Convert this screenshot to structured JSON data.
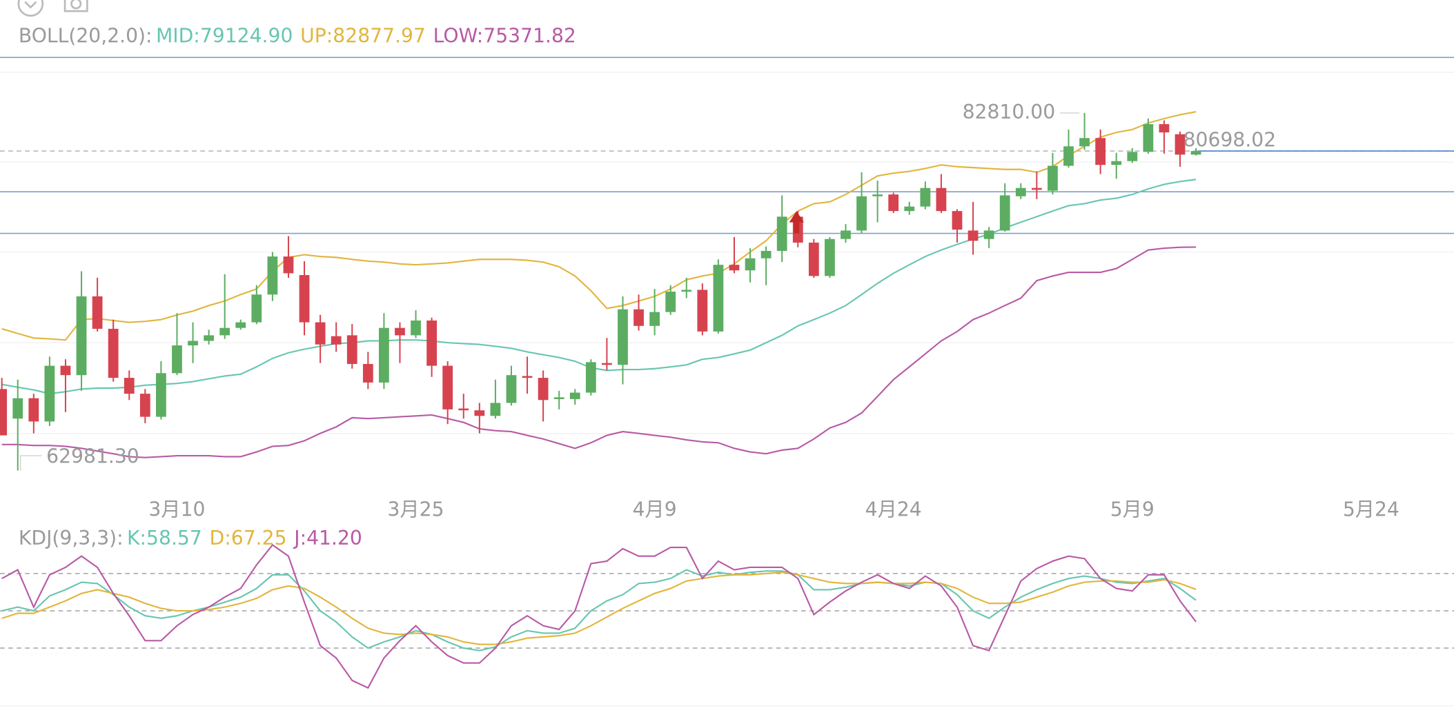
{
  "chart_data": [
    {
      "type": "candlestick",
      "title": "BOLL(20,2.0):",
      "categories": [
        null,
        null,
        null,
        null,
        null,
        null,
        null,
        null,
        null,
        null,
        null,
        "3月10",
        null,
        null,
        null,
        null,
        null,
        null,
        null,
        null,
        null,
        null,
        null,
        null,
        null,
        null,
        "3月25",
        null,
        null,
        null,
        null,
        null,
        null,
        null,
        null,
        null,
        null,
        null,
        null,
        null,
        null,
        "4月9",
        null,
        null,
        null,
        null,
        null,
        null,
        null,
        null,
        null,
        null,
        null,
        null,
        null,
        null,
        "4月24",
        null,
        null,
        null,
        null,
        null,
        null,
        null,
        null,
        null,
        null,
        null,
        null,
        null,
        null,
        "5月9",
        null,
        null,
        null,
        null,
        null,
        null,
        null,
        null,
        null,
        null,
        null,
        null,
        null,
        null,
        "5月24",
        null,
        null,
        null,
        null,
        null
      ],
      "open": [
        67500,
        65860,
        66990,
        65700,
        68790,
        68270,
        72640,
        70840,
        68120,
        67240,
        65960,
        68380,
        69920,
        70170,
        70480,
        70890,
        71200,
        72740,
        74850,
        73820,
        71200,
        70430,
        70480,
        68890,
        67860,
        70890,
        70480,
        71300,
        68790,
        66420,
        66320,
        66010,
        66730,
        68220,
        68120,
        66940,
        66940,
        67300,
        68940,
        68840,
        71920,
        71000,
        71770,
        72900,
        73000,
        70690,
        74390,
        74080,
        74750,
        75160,
        77060,
        75620,
        73770,
        75820,
        76290,
        78190,
        78290,
        77370,
        77620,
        78650,
        77370,
        76290,
        75820,
        76290,
        78190,
        78650,
        78500,
        79880,
        80960,
        81420,
        79930,
        80140,
        80650,
        82190,
        81630,
        80500,
        null,
        null,
        null,
        null,
        null,
        null,
        null,
        null,
        null,
        null,
        null,
        null,
        null,
        null,
        null,
        null
      ],
      "high": [
        68120,
        68020,
        67240,
        69300,
        69150,
        74030,
        73670,
        71350,
        68530,
        67500,
        69040,
        71710,
        71200,
        70790,
        73870,
        71350,
        73260,
        75100,
        75980,
        74590,
        71610,
        71200,
        71100,
        69560,
        71710,
        71200,
        71870,
        71460,
        69040,
        67240,
        66730,
        68020,
        68790,
        69300,
        68530,
        67400,
        67500,
        69150,
        70330,
        72640,
        72740,
        73050,
        73260,
        73670,
        73360,
        74690,
        75930,
        75310,
        75410,
        78240,
        77370,
        75820,
        75930,
        76650,
        79520,
        79060,
        78390,
        77880,
        79010,
        79420,
        77470,
        77880,
        76490,
        78910,
        78910,
        79570,
        80600,
        81890,
        82810,
        81890,
        80600,
        80860,
        82500,
        82400,
        81780,
        80860,
        null,
        null,
        null,
        null,
        null,
        null,
        null,
        null,
        null,
        null,
        null,
        null,
        null,
        null,
        null,
        null
      ],
      "low": [
        64930,
        62981.3,
        65040,
        65450,
        66220,
        67400,
        70690,
        67910,
        66890,
        65600,
        65810,
        68270,
        68940,
        69970,
        70280,
        70790,
        71100,
        72380,
        73670,
        70480,
        68940,
        69560,
        68630,
        67500,
        67500,
        68940,
        70330,
        68170,
        65550,
        65860,
        65040,
        65860,
        66580,
        67240,
        65700,
        66370,
        66630,
        67140,
        68530,
        67760,
        70740,
        70480,
        71610,
        72540,
        70480,
        70580,
        73920,
        73410,
        73260,
        74540,
        75360,
        73670,
        73670,
        75620,
        76130,
        76750,
        77260,
        77160,
        77470,
        77260,
        75620,
        74950,
        75310,
        76230,
        78030,
        78030,
        78290,
        79780,
        80760,
        79420,
        79160,
        80040,
        80550,
        80550,
        79830,
        80450,
        null,
        null,
        null,
        null,
        null,
        null,
        null,
        null,
        null,
        null,
        null,
        null,
        null,
        null,
        null,
        null
      ],
      "close": [
        64930,
        66990,
        65700,
        68790,
        68270,
        72640,
        70840,
        68120,
        67240,
        65960,
        68380,
        69920,
        70170,
        70480,
        70890,
        71200,
        72740,
        74850,
        73920,
        71200,
        69970,
        69970,
        68890,
        67860,
        70890,
        70480,
        71300,
        68790,
        66370,
        66320,
        66010,
        66730,
        68270,
        68120,
        66890,
        67040,
        67300,
        68990,
        68840,
        71920,
        71000,
        71770,
        72900,
        73000,
        70690,
        74390,
        74080,
        74750,
        75160,
        77060,
        75620,
        73770,
        75820,
        76290,
        78190,
        78290,
        77370,
        77620,
        78650,
        77370,
        76340,
        75720,
        76290,
        78240,
        78650,
        78550,
        79880,
        80960,
        81420,
        79930,
        80140,
        80650,
        82190,
        81730,
        80500,
        80698.02,
        null,
        null,
        null,
        null,
        null,
        null,
        null,
        null,
        null,
        null,
        null,
        null,
        null,
        null,
        null,
        null
      ],
      "up_color": "#5cad62",
      "down_color": "#d6434f",
      "series": [
        {
          "name": "MID:",
          "legend_value": "79124.90",
          "color": "#67c6b1",
          "values": [
            67760,
            67600,
            67450,
            67240,
            67350,
            67500,
            67550,
            67550,
            67600,
            67710,
            67760,
            67810,
            67910,
            68070,
            68220,
            68320,
            68730,
            69200,
            69510,
            69710,
            69870,
            70020,
            70070,
            70170,
            70170,
            70220,
            70220,
            70170,
            70070,
            70020,
            69970,
            69870,
            69760,
            69560,
            69400,
            69250,
            69040,
            68680,
            68530,
            68580,
            68580,
            68630,
            68730,
            68840,
            69150,
            69250,
            69450,
            69660,
            70070,
            70480,
            71000,
            71350,
            71710,
            72130,
            72740,
            73360,
            73920,
            74390,
            74850,
            75210,
            75520,
            75820,
            76080,
            76440,
            76750,
            77060,
            77370,
            77670,
            77780,
            77980,
            78080,
            78290,
            78600,
            78850,
            79010,
            79124.9,
            null,
            null,
            null,
            null,
            null,
            null,
            null,
            null,
            null,
            null,
            null,
            null,
            null,
            null,
            null,
            null
          ]
        },
        {
          "name": "UP:",
          "legend_value": "82877.97",
          "color": "#e2b53c",
          "values": [
            70840,
            70580,
            70330,
            70280,
            70220,
            71350,
            71410,
            71300,
            71200,
            71250,
            71350,
            71610,
            71820,
            72130,
            72380,
            72740,
            73050,
            74030,
            74800,
            74950,
            74850,
            74800,
            74690,
            74590,
            74540,
            74440,
            74390,
            74440,
            74490,
            74590,
            74690,
            74690,
            74690,
            74640,
            74540,
            74280,
            73770,
            72950,
            71970,
            72130,
            72380,
            72640,
            73050,
            73560,
            73770,
            73920,
            74440,
            75100,
            75720,
            76650,
            77370,
            77780,
            77880,
            78290,
            78800,
            79320,
            79470,
            79570,
            79730,
            79930,
            79830,
            79780,
            79730,
            79680,
            79680,
            79520,
            79830,
            80450,
            80960,
            81470,
            81730,
            81890,
            82250,
            82500,
            82710,
            82877.97,
            null,
            null,
            null,
            null,
            null,
            null,
            null,
            null,
            null,
            null,
            null,
            null,
            null,
            null,
            null,
            null
          ]
        },
        {
          "name": "LOW:",
          "legend_value": "75371.82",
          "color": "#b85aa6",
          "values": [
            64420,
            64420,
            64370,
            64370,
            64320,
            64210,
            64060,
            63910,
            63750,
            63700,
            63750,
            63800,
            63800,
            63800,
            63750,
            63750,
            64010,
            64320,
            64370,
            64630,
            65040,
            65400,
            65910,
            65860,
            65910,
            65960,
            66010,
            66060,
            65860,
            65650,
            65290,
            65190,
            65140,
            64930,
            64730,
            64470,
            64210,
            64520,
            64930,
            65140,
            65040,
            64930,
            64830,
            64680,
            64570,
            64520,
            64210,
            64010,
            63910,
            64110,
            64210,
            64730,
            65340,
            65650,
            66170,
            67090,
            68020,
            68730,
            69450,
            70170,
            70690,
            71350,
            71710,
            72130,
            72540,
            73510,
            73770,
            73970,
            73970,
            73970,
            74180,
            74690,
            75210,
            75310,
            75360,
            75371.82,
            null,
            null,
            null,
            null,
            null,
            null,
            null,
            null,
            null,
            null,
            null,
            null,
            null,
            null,
            null,
            null
          ]
        }
      ],
      "annotations": [
        {
          "label": "82810.00",
          "value": 82810
        },
        {
          "label": "62981.30",
          "value": 62981.3
        },
        {
          "label": "80698.02",
          "value": 80698.02,
          "color": "#4a7fc9"
        }
      ],
      "ylim": [
        61590,
        85890
      ]
    },
    {
      "type": "line",
      "title": "KDJ(9,3,3):",
      "hlines": [
        20,
        50,
        80
      ],
      "ylim": [
        -25,
        98
      ],
      "series": [
        {
          "name": "K:",
          "legend_value": "58.57",
          "color": "#67c6b1",
          "values": [
            50,
            53,
            50,
            62,
            67,
            73,
            72,
            63,
            53,
            46,
            44,
            46,
            50,
            53,
            57,
            61,
            68,
            79,
            79,
            66,
            50,
            41,
            29,
            20,
            25,
            29,
            34,
            31,
            25,
            20,
            18,
            21,
            29,
            34,
            32,
            32,
            36,
            50,
            58,
            63,
            72,
            73,
            76,
            83,
            78,
            81,
            79,
            81,
            82,
            82,
            79,
            67,
            67,
            69,
            72,
            73,
            72,
            70,
            73,
            72,
            63,
            50,
            44,
            53,
            61,
            67,
            72,
            76,
            78,
            76,
            73,
            72,
            74,
            76,
            68,
            58.57
          ]
        },
        {
          "name": "D:",
          "legend_value": "67.25",
          "color": "#e2b53c",
          "values": [
            44,
            48,
            48,
            53,
            58,
            64,
            67,
            64,
            61,
            56,
            52,
            50,
            50,
            51,
            53,
            56,
            60,
            67,
            70,
            68,
            61,
            53,
            44,
            36,
            32,
            31,
            32,
            31,
            29,
            25,
            23,
            23,
            25,
            28,
            29,
            30,
            32,
            38,
            45,
            52,
            58,
            64,
            68,
            74,
            76,
            78,
            79,
            79,
            80,
            81,
            79,
            76,
            73,
            72,
            72,
            73,
            72,
            72,
            73,
            72,
            68,
            61,
            56,
            56,
            57,
            61,
            65,
            70,
            73,
            74,
            74,
            73,
            73,
            75,
            72,
            67.25
          ]
        },
        {
          "name": "J:",
          "legend_value": "41.20",
          "color": "#b85aa6",
          "values": [
            76,
            83,
            53,
            79,
            85,
            94,
            85,
            64,
            46,
            26,
            26,
            38,
            47,
            53,
            61,
            68,
            87,
            103,
            94,
            57,
            22,
            12,
            -6,
            -12,
            12,
            26,
            38,
            25,
            14,
            8,
            8,
            20,
            38,
            46,
            38,
            35,
            50,
            88,
            90,
            100,
            94,
            94,
            101,
            101,
            76,
            90,
            83,
            85,
            85,
            85,
            76,
            47,
            57,
            66,
            73,
            79,
            72,
            68,
            78,
            70,
            53,
            22,
            18,
            46,
            74,
            84,
            90,
            94,
            92,
            76,
            68,
            66,
            79,
            79,
            58,
            41.2
          ]
        }
      ]
    }
  ]
}
